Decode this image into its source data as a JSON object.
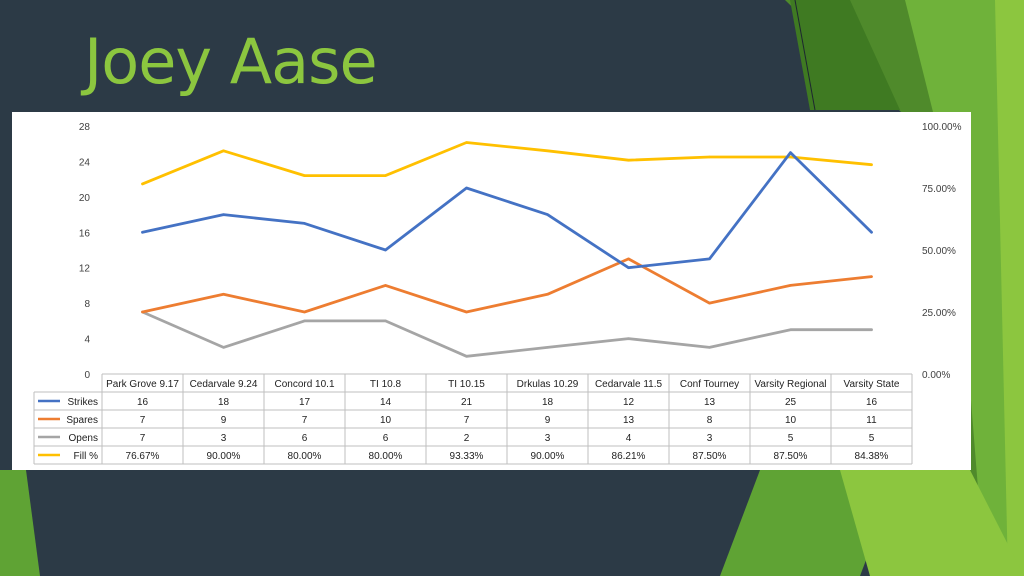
{
  "slide": {
    "title": "Joey Aase"
  },
  "theme": {
    "background": "#2c3a46",
    "accent": "#8cc63f",
    "accent_dark": "#4f8a2b"
  },
  "chart_data": {
    "type": "line",
    "categories": [
      "Park Grove 9.17",
      "Cedarvale 9.24",
      "Concord 10.1",
      "TI 10.8",
      "TI 10.15",
      "Drkulas 10.29",
      "Cedarvale 11.5",
      "Conf Tourney",
      "Varsity Regional",
      "Varsity State"
    ],
    "left_axis": {
      "ylim": [
        0,
        28
      ],
      "ticks": [
        "0",
        "4",
        "8",
        "12",
        "16",
        "20",
        "24",
        "28"
      ]
    },
    "right_axis": {
      "ylim": [
        0,
        100
      ],
      "ticks": [
        "0.00%",
        "25.00%",
        "50.00%",
        "75.00%",
        "100.00%"
      ]
    },
    "grid": false,
    "legend": "data-table",
    "series": [
      {
        "name": "Strikes",
        "axis": "left",
        "color": "#4472c4",
        "values": [
          16,
          18,
          17,
          14,
          21,
          18,
          12,
          13,
          25,
          16
        ],
        "labels": [
          "16",
          "18",
          "17",
          "14",
          "21",
          "18",
          "12",
          "13",
          "25",
          "16"
        ]
      },
      {
        "name": "Spares",
        "axis": "left",
        "color": "#ed7d31",
        "values": [
          7,
          9,
          7,
          10,
          7,
          9,
          13,
          8,
          10,
          11
        ],
        "labels": [
          "7",
          "9",
          "7",
          "10",
          "7",
          "9",
          "13",
          "8",
          "10",
          "11"
        ]
      },
      {
        "name": "Opens",
        "axis": "left",
        "color": "#a5a5a5",
        "values": [
          7,
          3,
          6,
          6,
          2,
          3,
          4,
          3,
          5,
          5
        ],
        "labels": [
          "7",
          "3",
          "6",
          "6",
          "2",
          "3",
          "4",
          "3",
          "5",
          "5"
        ]
      },
      {
        "name": "Fill %",
        "axis": "right",
        "color": "#ffc000",
        "values": [
          76.67,
          90.0,
          80.0,
          80.0,
          93.33,
          90.0,
          86.21,
          87.5,
          87.5,
          84.38
        ],
        "labels": [
          "76.67%",
          "90.00%",
          "80.00%",
          "80.00%",
          "93.33%",
          "90.00%",
          "86.21%",
          "87.50%",
          "87.50%",
          "84.38%"
        ]
      }
    ]
  }
}
